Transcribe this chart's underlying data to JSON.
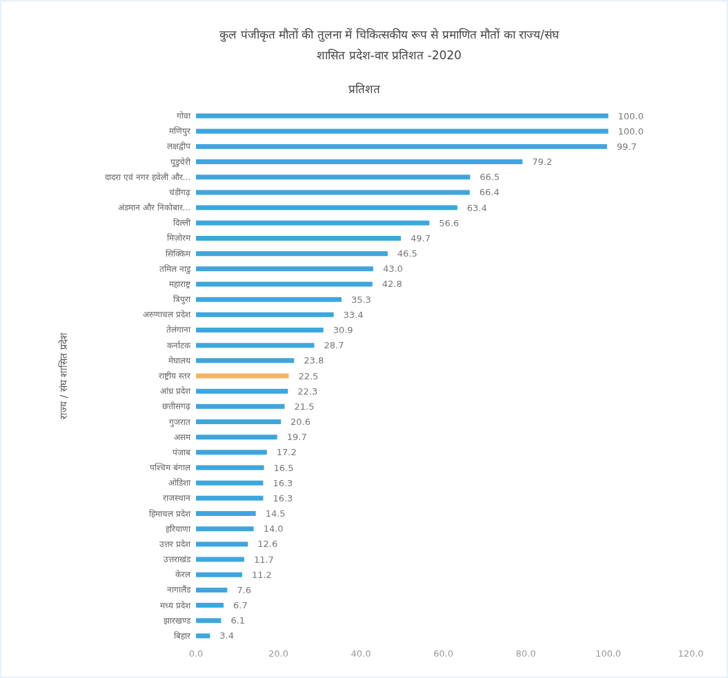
{
  "chart_data": {
    "type": "bar",
    "orientation": "horizontal",
    "title": "कुल पंजीकृत मौतों की तुलना में चिकित्सकीय रूप से प्रमाणित मौतों का राज्य/संघ\nशासित प्रदेश-वार प्रतिशत -2020",
    "subtitle": "प्रतिशत",
    "ylabel": "राज्य / संघ शासित प्रदेश",
    "categories": [
      "गोवा",
      "मणिपुर",
      "लक्षद्वीप",
      "पुडुचेरी",
      "दादरा एवं नगर हवेली और...",
      "चंडीगढ़",
      "अंडमान और निकोबार...",
      "दिल्ली",
      "मिज़ोरम",
      "सिक्किम",
      "तमिल नाडु",
      "महाराष्ट्र",
      "त्रिपुरा",
      "अरुणाचल प्रदेश",
      "तेलंगाना",
      "कर्नाटक",
      "मेघालय",
      "राष्ट्रीय स्तर",
      "आंध्र प्रदेश",
      "छत्तीसगढ़",
      "गुजरात",
      "असम",
      "पंजाब",
      "पश्चिम बंगाल",
      "ओडिशा",
      "राजस्थान",
      "हिमाचल प्रदेश",
      "हरियाणा",
      "उत्तर प्रदेश",
      "उत्तराखंड",
      "केरल",
      "नागालैंड",
      "मध्य प्रदेश",
      "झारखण्ड",
      "बिहार"
    ],
    "values": [
      100.0,
      100.0,
      99.7,
      79.2,
      66.5,
      66.4,
      63.4,
      56.6,
      49.7,
      46.5,
      43.0,
      42.8,
      35.3,
      33.4,
      30.9,
      28.7,
      23.8,
      22.5,
      22.3,
      21.5,
      20.6,
      19.7,
      17.2,
      16.5,
      16.3,
      16.3,
      14.5,
      14.0,
      12.6,
      11.7,
      11.2,
      7.6,
      6.7,
      6.1,
      3.4
    ],
    "value_labels": [
      "100.0",
      "100.0",
      "99.7",
      "79.2",
      "66.5",
      "66.4",
      "63.4",
      "56.6",
      "49.7",
      "46.5",
      "43.0",
      "42.8",
      "35.3",
      "33.4",
      "30.9",
      "28.7",
      "23.8",
      "22.5",
      "22.3",
      "21.5",
      "20.6",
      "19.7",
      "17.2",
      "16.5",
      "16.3",
      "16.3",
      "14.5",
      "14.0",
      "12.6",
      "11.7",
      "11.2",
      "7.6",
      "6.7",
      "6.1",
      "3.4"
    ],
    "colors": [
      "#3ea6dc",
      "#3ea6dc",
      "#3ea6dc",
      "#3ea6dc",
      "#3ea6dc",
      "#3ea6dc",
      "#3ea6dc",
      "#3ea6dc",
      "#3ea6dc",
      "#3ea6dc",
      "#3ea6dc",
      "#3ea6dc",
      "#3ea6dc",
      "#3ea6dc",
      "#3ea6dc",
      "#3ea6dc",
      "#3ea6dc",
      "#f4b462",
      "#3ea6dc",
      "#3ea6dc",
      "#3ea6dc",
      "#3ea6dc",
      "#3ea6dc",
      "#3ea6dc",
      "#3ea6dc",
      "#3ea6dc",
      "#3ea6dc",
      "#3ea6dc",
      "#3ea6dc",
      "#3ea6dc",
      "#3ea6dc",
      "#3ea6dc",
      "#3ea6dc",
      "#3ea6dc",
      "#3ea6dc"
    ],
    "xlim": [
      0,
      120
    ],
    "xticks": [
      {
        "value": 0,
        "label": "0.0"
      },
      {
        "value": 20,
        "label": "20.0"
      },
      {
        "value": 40,
        "label": "40.0"
      },
      {
        "value": 60,
        "label": "60.0"
      },
      {
        "value": 80,
        "label": "80.0"
      },
      {
        "value": 100,
        "label": "100.0"
      },
      {
        "value": 120,
        "label": "120.0"
      }
    ],
    "grid": false
  }
}
